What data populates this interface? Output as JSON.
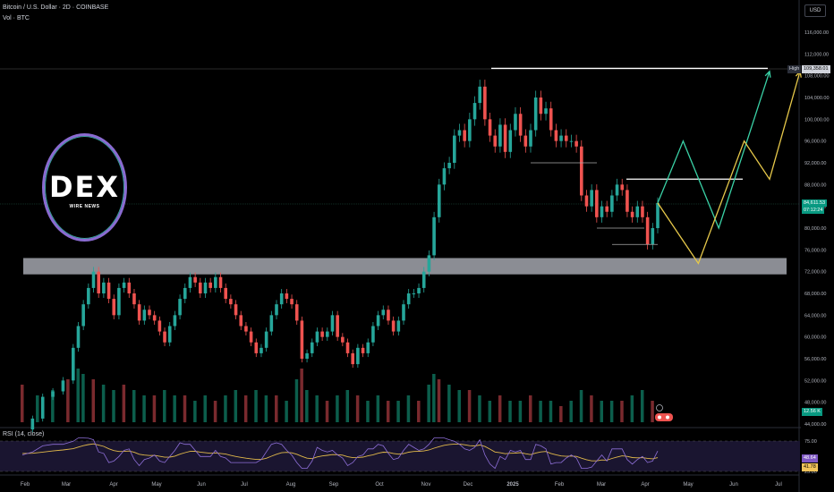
{
  "header": {
    "title": "Bitcoin / U.S. Dollar · 2D · COINBASE",
    "vol": "Vol · BTC",
    "currency": "USD"
  },
  "logo": {
    "text": "DEX",
    "subtext": "WIRE NEWS"
  },
  "rsi": {
    "title": "RSI (14, close)"
  },
  "tags": {
    "high_label": "High",
    "high_value": "109,358.01",
    "price_value": "84,611.53",
    "price_timer": "07:12:24",
    "vol_value": "12.56 K",
    "rsi_value": "48.64",
    "rsi_ma_value": "41.78"
  },
  "chart_data": {
    "type": "candlestick",
    "price_axis": {
      "ticks": [
        "116,000.00",
        "112,000.00",
        "108,000.00",
        "104,000.00",
        "100,000.00",
        "96,000.00",
        "92,000.00",
        "88,000.00",
        "84,000.00",
        "80,000.00",
        "76,000.00",
        "72,000.00",
        "68,000.00",
        "64,000.00",
        "60,000.00",
        "56,000.00",
        "52,000.00",
        "48,000.00",
        "44,000.00"
      ]
    },
    "rsi_axis": {
      "ticks": [
        "75.00",
        "25.00"
      ]
    },
    "x_axis": {
      "ticks": [
        "Feb",
        "Mar",
        "Apr",
        "May",
        "Jun",
        "Jul",
        "Aug",
        "Sep",
        "Oct",
        "Nov",
        "Dec",
        "2025",
        "Feb",
        "Mar",
        "Apr",
        "May",
        "Jun",
        "Jul"
      ]
    },
    "path": [
      {
        "x": 0,
        "y": 43000
      },
      {
        "x": 2,
        "y": 45000
      },
      {
        "x": 4,
        "y": 49000
      },
      {
        "x": 6,
        "y": 50000
      },
      {
        "x": 8,
        "y": 52000
      },
      {
        "x": 10,
        "y": 58000
      },
      {
        "x": 11,
        "y": 62000
      },
      {
        "x": 12,
        "y": 66000
      },
      {
        "x": 13,
        "y": 69000
      },
      {
        "x": 14,
        "y": 72000
      },
      {
        "x": 15,
        "y": 68000
      },
      {
        "x": 16,
        "y": 70000
      },
      {
        "x": 17,
        "y": 67000
      },
      {
        "x": 18,
        "y": 64000
      },
      {
        "x": 19,
        "y": 69000
      },
      {
        "x": 20,
        "y": 70000
      },
      {
        "x": 21,
        "y": 68000
      },
      {
        "x": 22,
        "y": 66000
      },
      {
        "x": 23,
        "y": 63000
      },
      {
        "x": 24,
        "y": 65000
      },
      {
        "x": 25,
        "y": 64000
      },
      {
        "x": 26,
        "y": 63000
      },
      {
        "x": 27,
        "y": 61000
      },
      {
        "x": 28,
        "y": 59000
      },
      {
        "x": 29,
        "y": 62000
      },
      {
        "x": 30,
        "y": 64000
      },
      {
        "x": 31,
        "y": 67000
      },
      {
        "x": 32,
        "y": 69000
      },
      {
        "x": 33,
        "y": 71000
      },
      {
        "x": 34,
        "y": 70000
      },
      {
        "x": 35,
        "y": 68000
      },
      {
        "x": 36,
        "y": 70000
      },
      {
        "x": 37,
        "y": 69000
      },
      {
        "x": 38,
        "y": 71000
      },
      {
        "x": 39,
        "y": 69000
      },
      {
        "x": 40,
        "y": 67000
      },
      {
        "x": 41,
        "y": 66000
      },
      {
        "x": 42,
        "y": 64000
      },
      {
        "x": 43,
        "y": 62000
      },
      {
        "x": 44,
        "y": 61000
      },
      {
        "x": 45,
        "y": 59000
      },
      {
        "x": 46,
        "y": 57000
      },
      {
        "x": 47,
        "y": 58000
      },
      {
        "x": 48,
        "y": 61000
      },
      {
        "x": 49,
        "y": 64000
      },
      {
        "x": 50,
        "y": 66000
      },
      {
        "x": 51,
        "y": 68000
      },
      {
        "x": 52,
        "y": 67000
      },
      {
        "x": 53,
        "y": 66000
      },
      {
        "x": 54,
        "y": 63000
      },
      {
        "x": 55,
        "y": 56000
      },
      {
        "x": 56,
        "y": 57000
      },
      {
        "x": 57,
        "y": 59000
      },
      {
        "x": 58,
        "y": 61000
      },
      {
        "x": 59,
        "y": 60000
      },
      {
        "x": 60,
        "y": 61000
      },
      {
        "x": 61,
        "y": 64000
      },
      {
        "x": 62,
        "y": 60000
      },
      {
        "x": 63,
        "y": 59000
      },
      {
        "x": 64,
        "y": 57000
      },
      {
        "x": 65,
        "y": 55000
      },
      {
        "x": 66,
        "y": 58000
      },
      {
        "x": 67,
        "y": 57000
      },
      {
        "x": 68,
        "y": 59000
      },
      {
        "x": 69,
        "y": 62000
      },
      {
        "x": 70,
        "y": 64000
      },
      {
        "x": 71,
        "y": 65000
      },
      {
        "x": 72,
        "y": 63000
      },
      {
        "x": 73,
        "y": 61000
      },
      {
        "x": 74,
        "y": 63000
      },
      {
        "x": 75,
        "y": 66000
      },
      {
        "x": 76,
        "y": 68000
      },
      {
        "x": 77,
        "y": 68000
      },
      {
        "x": 78,
        "y": 69000
      },
      {
        "x": 79,
        "y": 72000
      },
      {
        "x": 80,
        "y": 75000
      },
      {
        "x": 81,
        "y": 82000
      },
      {
        "x": 82,
        "y": 88000
      },
      {
        "x": 83,
        "y": 91000
      },
      {
        "x": 84,
        "y": 92000
      },
      {
        "x": 85,
        "y": 97000
      },
      {
        "x": 86,
        "y": 98000
      },
      {
        "x": 87,
        "y": 96000
      },
      {
        "x": 88,
        "y": 100000
      },
      {
        "x": 89,
        "y": 103000
      },
      {
        "x": 90,
        "y": 106000
      },
      {
        "x": 91,
        "y": 100000
      },
      {
        "x": 92,
        "y": 97000
      },
      {
        "x": 93,
        "y": 95000
      },
      {
        "x": 94,
        "y": 99000
      },
      {
        "x": 95,
        "y": 94000
      },
      {
        "x": 96,
        "y": 98000
      },
      {
        "x": 97,
        "y": 101000
      },
      {
        "x": 98,
        "y": 97000
      },
      {
        "x": 99,
        "y": 95000
      },
      {
        "x": 100,
        "y": 98000
      },
      {
        "x": 101,
        "y": 104000
      },
      {
        "x": 102,
        "y": 101000
      },
      {
        "x": 103,
        "y": 102000
      },
      {
        "x": 104,
        "y": 98000
      },
      {
        "x": 105,
        "y": 96000
      },
      {
        "x": 106,
        "y": 97000
      },
      {
        "x": 107,
        "y": 96000
      },
      {
        "x": 108,
        "y": 96000
      },
      {
        "x": 109,
        "y": 95000
      },
      {
        "x": 110,
        "y": 86000
      },
      {
        "x": 111,
        "y": 84000
      },
      {
        "x": 112,
        "y": 87000
      },
      {
        "x": 113,
        "y": 82000
      },
      {
        "x": 114,
        "y": 84000
      },
      {
        "x": 115,
        "y": 83000
      },
      {
        "x": 116,
        "y": 86000
      },
      {
        "x": 117,
        "y": 88000
      },
      {
        "x": 118,
        "y": 87000
      },
      {
        "x": 119,
        "y": 83000
      },
      {
        "x": 120,
        "y": 82000
      },
      {
        "x": 121,
        "y": 84000
      },
      {
        "x": 122,
        "y": 82000
      },
      {
        "x": 123,
        "y": 77000
      },
      {
        "x": 124,
        "y": 80000
      },
      {
        "x": 125,
        "y": 84611
      }
    ],
    "volume": [
      {
        "x": 0,
        "v": 0.7
      },
      {
        "x": 3,
        "v": 0.5
      },
      {
        "x": 6,
        "v": 0.6
      },
      {
        "x": 9,
        "v": 0.8
      },
      {
        "x": 11,
        "v": 1.0
      },
      {
        "x": 12,
        "v": 0.9
      },
      {
        "x": 14,
        "v": 0.8
      },
      {
        "x": 16,
        "v": 0.7
      },
      {
        "x": 18,
        "v": 0.6
      },
      {
        "x": 20,
        "v": 0.7
      },
      {
        "x": 22,
        "v": 0.6
      },
      {
        "x": 24,
        "v": 0.5
      },
      {
        "x": 26,
        "v": 0.5
      },
      {
        "x": 28,
        "v": 0.6
      },
      {
        "x": 30,
        "v": 0.5
      },
      {
        "x": 32,
        "v": 0.5
      },
      {
        "x": 34,
        "v": 0.4
      },
      {
        "x": 36,
        "v": 0.5
      },
      {
        "x": 38,
        "v": 0.4
      },
      {
        "x": 40,
        "v": 0.5
      },
      {
        "x": 42,
        "v": 0.6
      },
      {
        "x": 44,
        "v": 0.5
      },
      {
        "x": 46,
        "v": 0.6
      },
      {
        "x": 48,
        "v": 0.5
      },
      {
        "x": 50,
        "v": 0.5
      },
      {
        "x": 52,
        "v": 0.4
      },
      {
        "x": 54,
        "v": 0.8
      },
      {
        "x": 55,
        "v": 1.0
      },
      {
        "x": 56,
        "v": 0.6
      },
      {
        "x": 58,
        "v": 0.5
      },
      {
        "x": 60,
        "v": 0.4
      },
      {
        "x": 62,
        "v": 0.5
      },
      {
        "x": 64,
        "v": 0.6
      },
      {
        "x": 66,
        "v": 0.5
      },
      {
        "x": 68,
        "v": 0.4
      },
      {
        "x": 70,
        "v": 0.5
      },
      {
        "x": 72,
        "v": 0.4
      },
      {
        "x": 74,
        "v": 0.4
      },
      {
        "x": 76,
        "v": 0.5
      },
      {
        "x": 78,
        "v": 0.4
      },
      {
        "x": 80,
        "v": 0.7
      },
      {
        "x": 81,
        "v": 0.9
      },
      {
        "x": 82,
        "v": 0.8
      },
      {
        "x": 84,
        "v": 0.7
      },
      {
        "x": 86,
        "v": 0.6
      },
      {
        "x": 88,
        "v": 0.6
      },
      {
        "x": 90,
        "v": 0.5
      },
      {
        "x": 92,
        "v": 0.4
      },
      {
        "x": 94,
        "v": 0.5
      },
      {
        "x": 96,
        "v": 0.4
      },
      {
        "x": 98,
        "v": 0.4
      },
      {
        "x": 100,
        "v": 0.5
      },
      {
        "x": 102,
        "v": 0.4
      },
      {
        "x": 104,
        "v": 0.4
      },
      {
        "x": 106,
        "v": 0.3
      },
      {
        "x": 108,
        "v": 0.4
      },
      {
        "x": 110,
        "v": 0.6
      },
      {
        "x": 112,
        "v": 0.5
      },
      {
        "x": 114,
        "v": 0.4
      },
      {
        "x": 116,
        "v": 0.4
      },
      {
        "x": 118,
        "v": 0.4
      },
      {
        "x": 120,
        "v": 0.5
      },
      {
        "x": 122,
        "v": 0.6
      },
      {
        "x": 124,
        "v": 0.4
      }
    ],
    "support_zone": [
      71500,
      74500
    ],
    "high_line": 109358.01,
    "resistance_line": 89000,
    "projection_green": [
      {
        "x": 125,
        "y": 84611
      },
      {
        "x": 130,
        "y": 96000
      },
      {
        "x": 137,
        "y": 80000
      },
      {
        "x": 147,
        "y": 108800
      }
    ],
    "projection_yellow": [
      {
        "x": 125,
        "y": 84611
      },
      {
        "x": 133,
        "y": 73500
      },
      {
        "x": 142,
        "y": 96000
      },
      {
        "x": 147,
        "y": 89000
      },
      {
        "x": 153,
        "y": 108800
      }
    ],
    "x_range": [
      0,
      160
    ],
    "price_range": [
      43000,
      118000
    ],
    "grid": false
  }
}
